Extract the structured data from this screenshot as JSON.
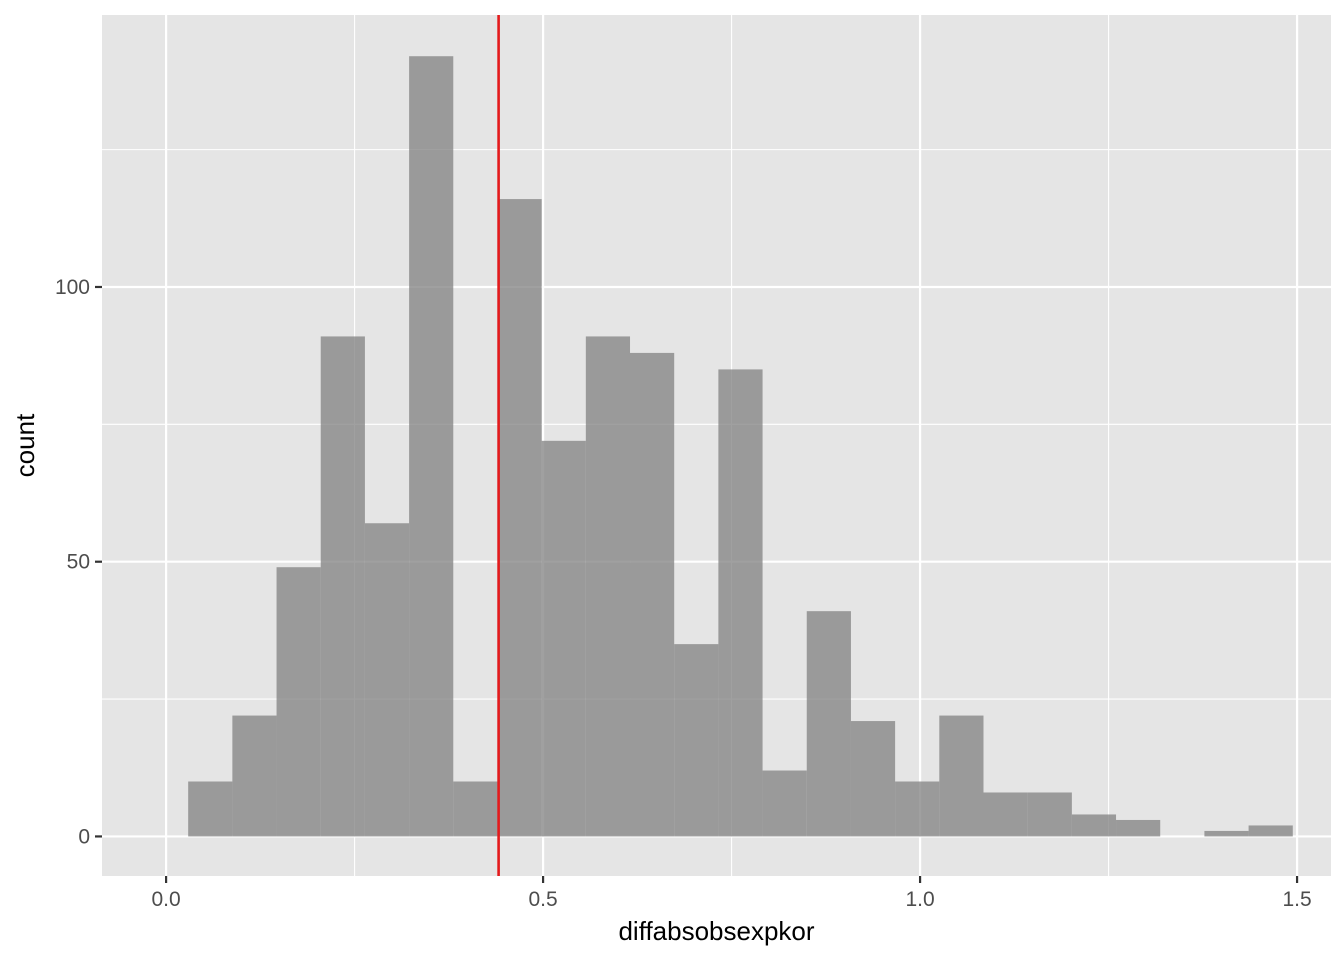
{
  "chart_data": {
    "type": "bar",
    "subtype": "histogram",
    "title": "",
    "xlabel": "diffabsobsexpkor",
    "ylabel": "count",
    "xlim": [
      -0.085,
      1.545
    ],
    "ylim": [
      -7.2,
      149.5
    ],
    "x_ticks": [
      {
        "value": 0.0,
        "label": "0.0"
      },
      {
        "value": 0.5,
        "label": "0.5"
      },
      {
        "value": 1.0,
        "label": "1.0"
      },
      {
        "value": 1.5,
        "label": "1.5"
      }
    ],
    "x_minor_ticks": [
      0.25,
      0.75,
      1.25
    ],
    "y_ticks": [
      {
        "value": 0,
        "label": "0"
      },
      {
        "value": 50,
        "label": "50"
      },
      {
        "value": 100,
        "label": "100"
      }
    ],
    "y_minor_ticks": [
      25,
      75,
      125
    ],
    "grid": true,
    "bin_width": 0.0586,
    "bins": [
      {
        "x0": 0.0293,
        "x1": 0.0879,
        "count": 10
      },
      {
        "x0": 0.0879,
        "x1": 0.1465,
        "count": 22
      },
      {
        "x0": 0.1465,
        "x1": 0.2051,
        "count": 49
      },
      {
        "x0": 0.2051,
        "x1": 0.2637,
        "count": 91
      },
      {
        "x0": 0.2637,
        "x1": 0.3223,
        "count": 57
      },
      {
        "x0": 0.3223,
        "x1": 0.3809,
        "count": 142
      },
      {
        "x0": 0.3809,
        "x1": 0.4395,
        "count": 10
      },
      {
        "x0": 0.4395,
        "x1": 0.4981,
        "count": 116
      },
      {
        "x0": 0.4981,
        "x1": 0.5567,
        "count": 72
      },
      {
        "x0": 0.5567,
        "x1": 0.6153,
        "count": 91
      },
      {
        "x0": 0.6153,
        "x1": 0.6739,
        "count": 88
      },
      {
        "x0": 0.6739,
        "x1": 0.7325,
        "count": 35
      },
      {
        "x0": 0.7325,
        "x1": 0.7911,
        "count": 85
      },
      {
        "x0": 0.7911,
        "x1": 0.8497,
        "count": 12
      },
      {
        "x0": 0.8497,
        "x1": 0.9083,
        "count": 41
      },
      {
        "x0": 0.9083,
        "x1": 0.9669,
        "count": 21
      },
      {
        "x0": 0.9669,
        "x1": 1.0255,
        "count": 10
      },
      {
        "x0": 1.0255,
        "x1": 1.0841,
        "count": 22
      },
      {
        "x0": 1.0841,
        "x1": 1.1427,
        "count": 8
      },
      {
        "x0": 1.1427,
        "x1": 1.2013,
        "count": 8
      },
      {
        "x0": 1.2013,
        "x1": 1.2599,
        "count": 4
      },
      {
        "x0": 1.2599,
        "x1": 1.3185,
        "count": 3
      },
      {
        "x0": 1.3185,
        "x1": 1.3771,
        "count": 0
      },
      {
        "x0": 1.3771,
        "x1": 1.4357,
        "count": 1
      },
      {
        "x0": 1.4357,
        "x1": 1.4943,
        "count": 2
      }
    ],
    "vline": {
      "x": 0.441,
      "color": "#e41a1c"
    },
    "colors": {
      "panel_background": "#e5e5e5",
      "grid_major": "#ffffff",
      "bar_fill": "#808080",
      "bar_alpha": 0.75
    }
  }
}
